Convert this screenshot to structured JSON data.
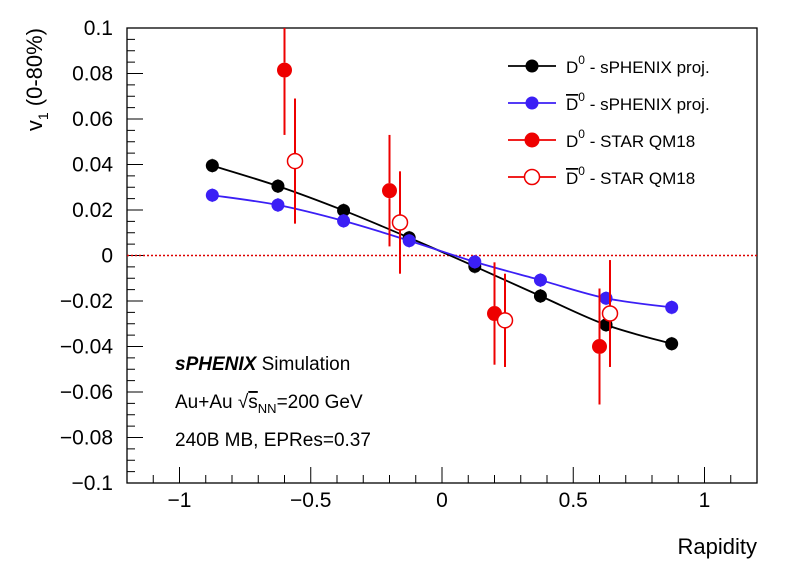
{
  "chart_data": {
    "type": "scatter",
    "xlabel": "Rapidity",
    "ylabel": "v1 (0-80%)",
    "xlim": [
      -1.2,
      1.2
    ],
    "ylim": [
      -0.1,
      0.1
    ],
    "xticks": [
      {
        "v": -1,
        "label": "−1"
      },
      {
        "v": -0.5,
        "label": "−0.5"
      },
      {
        "v": 0,
        "label": "0"
      },
      {
        "v": 0.5,
        "label": "0.5"
      },
      {
        "v": 1,
        "label": "1"
      }
    ],
    "yticks": [
      {
        "v": -0.1,
        "label": "−0.1"
      },
      {
        "v": -0.08,
        "label": "−0.08"
      },
      {
        "v": -0.06,
        "label": "−0.06"
      },
      {
        "v": -0.04,
        "label": "−0.04"
      },
      {
        "v": -0.02,
        "label": "−0.02"
      },
      {
        "v": 0,
        "label": "0"
      },
      {
        "v": 0.02,
        "label": "0.02"
      },
      {
        "v": 0.04,
        "label": "0.04"
      },
      {
        "v": 0.06,
        "label": "0.06"
      },
      {
        "v": 0.08,
        "label": "0.08"
      },
      {
        "v": 0.1,
        "label": "0.1"
      }
    ],
    "reference_line": {
      "y": 0,
      "color": "#dd0000",
      "style": "dotted"
    },
    "legend_placement": "top-right",
    "series": [
      {
        "name": "D0 - sPHENIX proj.",
        "color": "#000000",
        "marker": "filled-circle",
        "fit_curve": true,
        "points": [
          {
            "x": -0.875,
            "y": 0.0395,
            "err": 0.003
          },
          {
            "x": -0.625,
            "y": 0.0305,
            "err": 0.003
          },
          {
            "x": -0.375,
            "y": 0.0198,
            "err": 0.003
          },
          {
            "x": -0.125,
            "y": 0.0078,
            "err": 0.003
          },
          {
            "x": 0.125,
            "y": -0.0048,
            "err": 0.003
          },
          {
            "x": 0.375,
            "y": -0.0178,
            "err": 0.003
          },
          {
            "x": 0.625,
            "y": -0.0305,
            "err": 0.003
          },
          {
            "x": 0.875,
            "y": -0.0388,
            "err": 0.003
          }
        ]
      },
      {
        "name": "D0bar - sPHENIX proj.",
        "color": "#3b1ff5",
        "marker": "filled-circle",
        "fit_curve": true,
        "points": [
          {
            "x": -0.875,
            "y": 0.0265,
            "err": 0.003
          },
          {
            "x": -0.625,
            "y": 0.0222,
            "err": 0.003
          },
          {
            "x": -0.375,
            "y": 0.0152,
            "err": 0.003
          },
          {
            "x": -0.125,
            "y": 0.0065,
            "err": 0.003
          },
          {
            "x": 0.125,
            "y": -0.0028,
            "err": 0.003
          },
          {
            "x": 0.375,
            "y": -0.0108,
            "err": 0.003
          },
          {
            "x": 0.625,
            "y": -0.0188,
            "err": 0.003
          },
          {
            "x": 0.875,
            "y": -0.0228,
            "err": 0.003
          }
        ]
      },
      {
        "name": "D0 - STAR QM18",
        "color": "#ee0000",
        "marker": "filled-circle",
        "fit_curve": false,
        "points": [
          {
            "x": -0.6,
            "y": 0.0815,
            "err": 0.0285
          },
          {
            "x": -0.2,
            "y": 0.0285,
            "err": 0.0245
          },
          {
            "x": 0.2,
            "y": -0.0255,
            "err": 0.0225
          },
          {
            "x": 0.6,
            "y": -0.04,
            "err": 0.0255
          }
        ]
      },
      {
        "name": "D0bar - STAR QM18",
        "color": "#ee0000",
        "marker": "open-circle",
        "fit_curve": false,
        "points": [
          {
            "x": -0.56,
            "y": 0.0415,
            "err": 0.0275
          },
          {
            "x": -0.16,
            "y": 0.0145,
            "err": 0.0225
          },
          {
            "x": 0.24,
            "y": -0.0285,
            "err": 0.0205
          },
          {
            "x": 0.64,
            "y": -0.0255,
            "err": 0.0235
          }
        ]
      }
    ],
    "legend": [
      {
        "main": "D",
        "sup": "0",
        "overbar": false,
        "text": " - sPHENIX proj."
      },
      {
        "main": "D",
        "sup": "0",
        "overbar": true,
        "text": " - sPHENIX proj."
      },
      {
        "main": "D",
        "sup": "0",
        "overbar": false,
        "text": " - STAR QM18"
      },
      {
        "main": "D",
        "sup": "0",
        "overbar": true,
        "text": " - STAR QM18"
      }
    ],
    "annotations": {
      "experiment": "sPHENIX",
      "experiment_suffix": " Simulation",
      "collision_prefix": "Au+Au ",
      "sqrt_symbol": "√",
      "sqrt_s": "s",
      "sqrt_s_sub": "NN",
      "energy": "=200 GeV",
      "stats": "240B MB, EPRes=0.37"
    }
  }
}
